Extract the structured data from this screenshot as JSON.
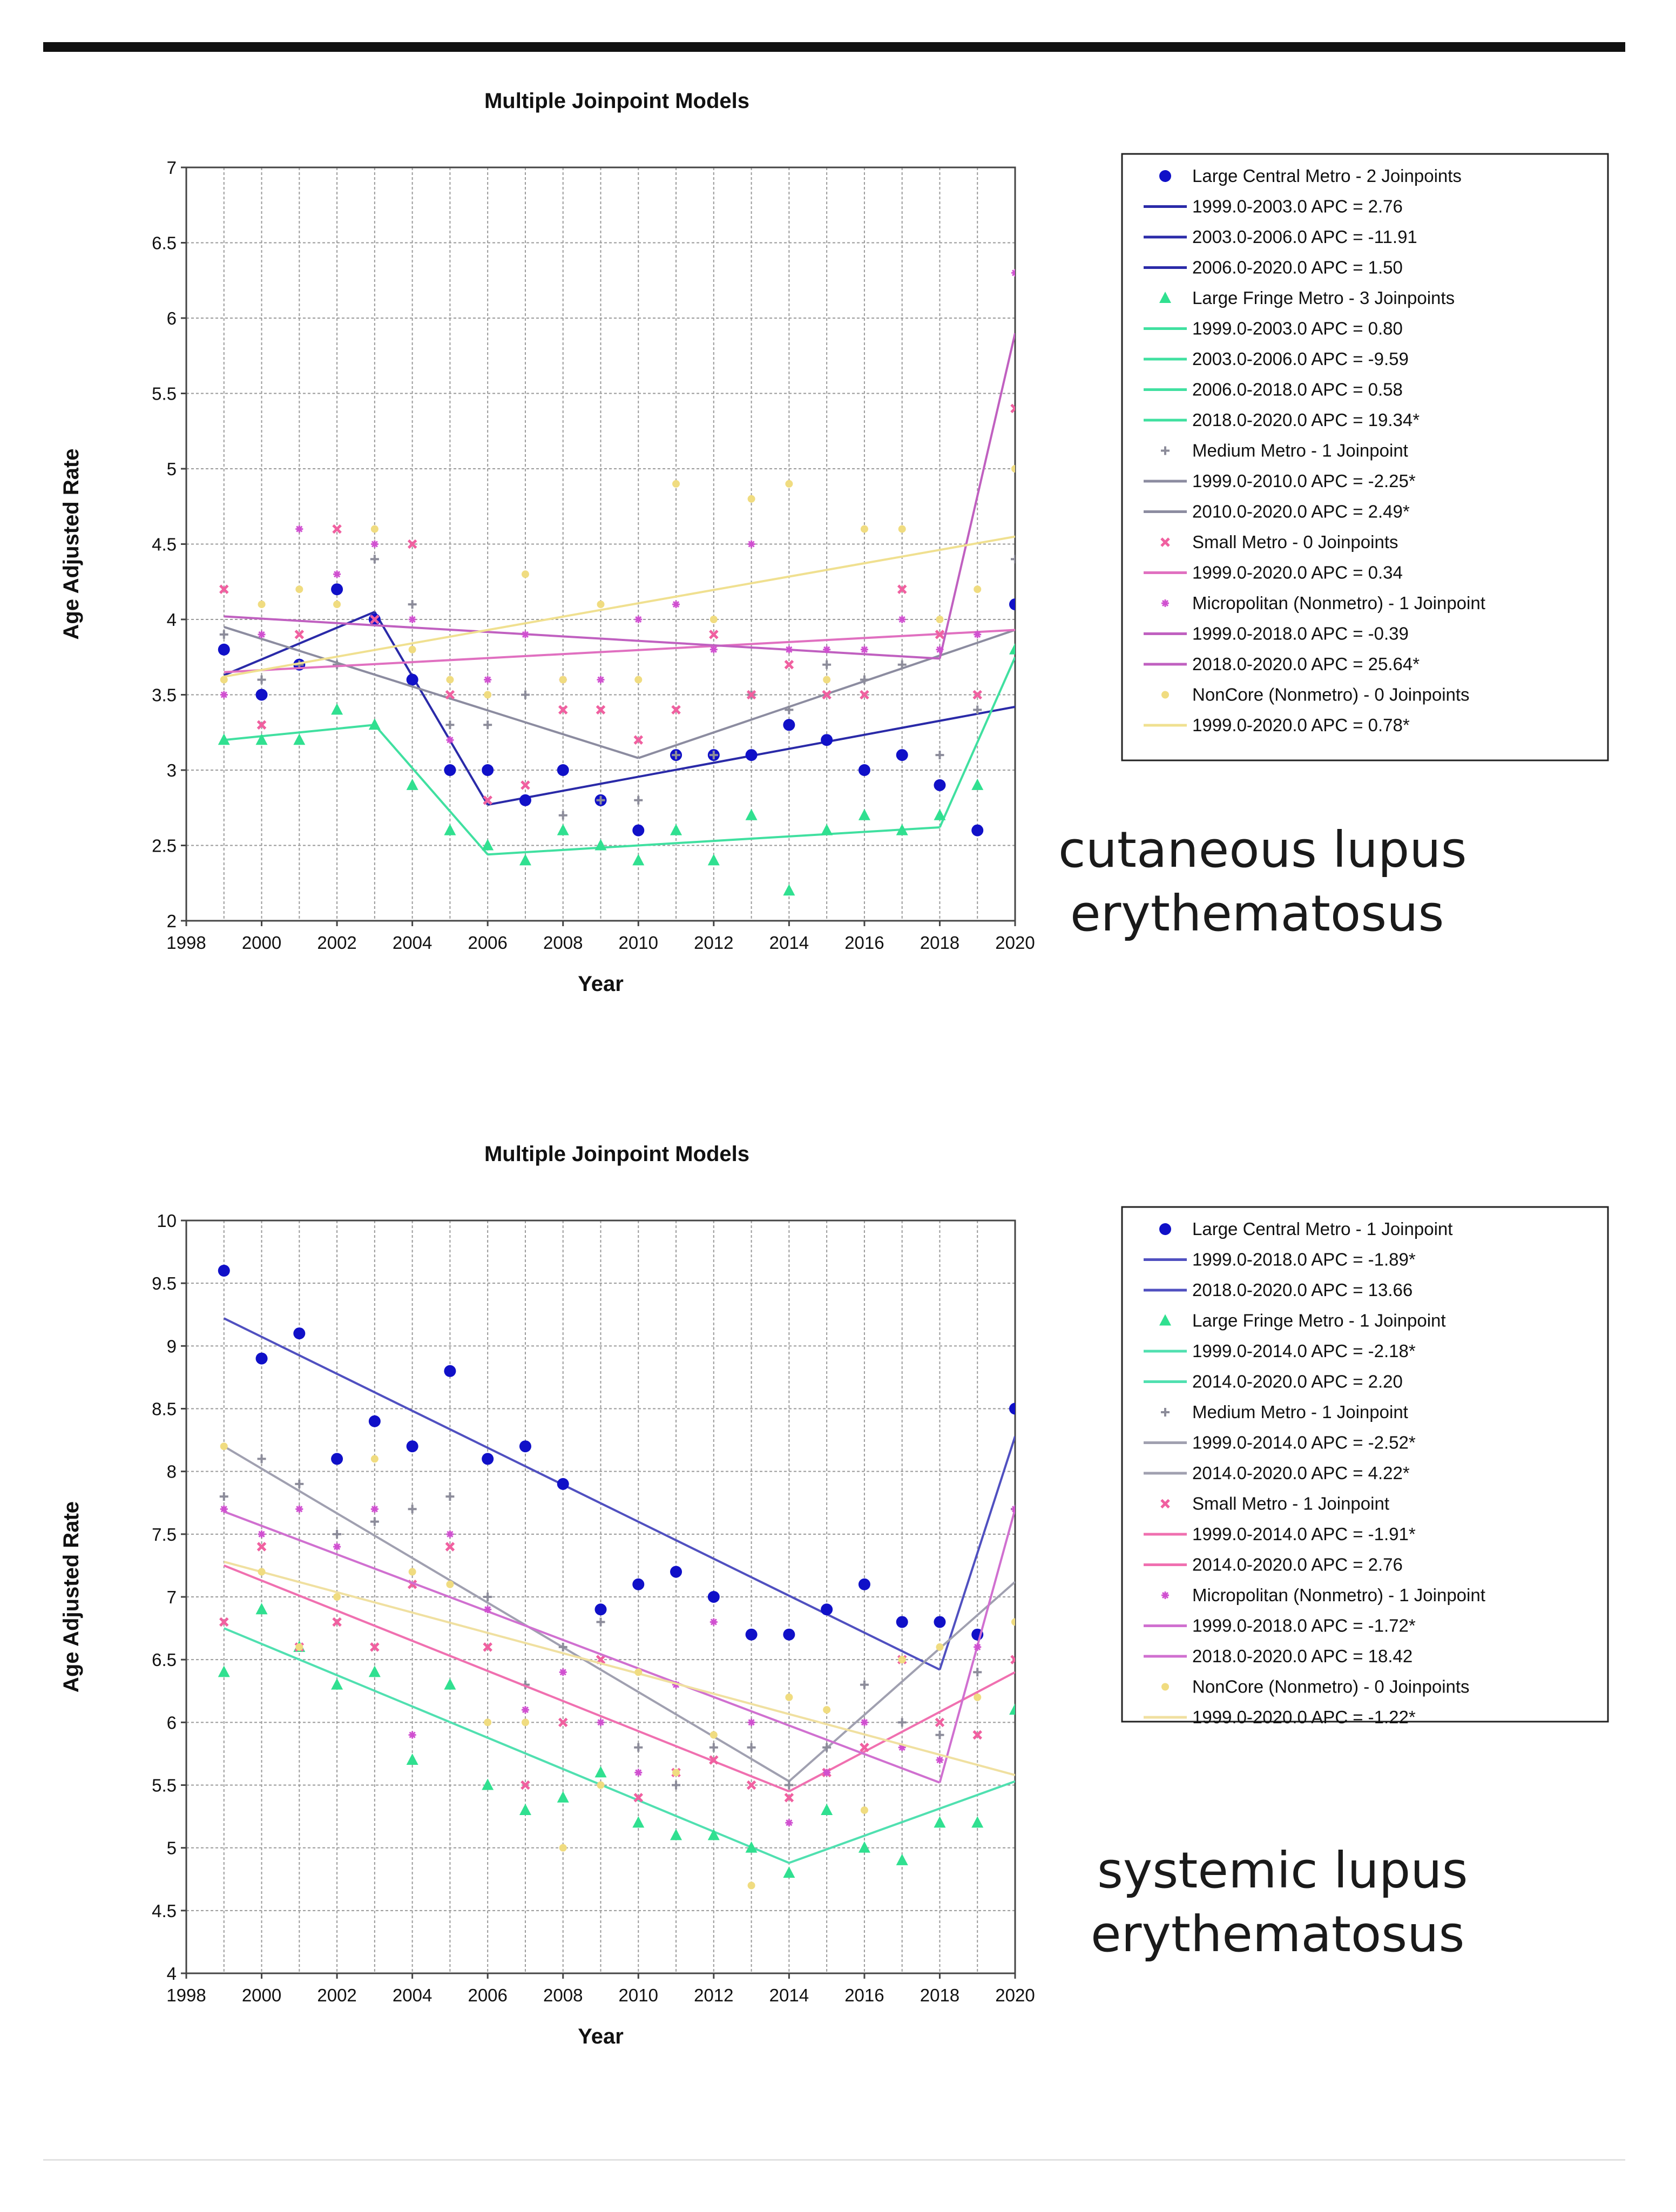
{
  "captions": [
    [
      "cutaneous lupus",
      "erythematosus"
    ],
    [
      "systemic lupus",
      "erythematosus"
    ]
  ],
  "chart_data": [
    {
      "type": "scatter",
      "title": "Multiple Joinpoint Models",
      "xlabel": "Year",
      "ylabel": "Age Adjusted Rate",
      "xlim": [
        1998,
        2020
      ],
      "ylim": [
        2,
        7
      ],
      "xticks": [
        "1998",
        "2000",
        "2002",
        "2004",
        "2006",
        "2008",
        "2010",
        "2012",
        "2014",
        "2016",
        "2018",
        "2020"
      ],
      "yticks": [
        "2",
        "2.5",
        "3",
        "3.5",
        "4",
        "4.5",
        "5",
        "5.5",
        "6",
        "6.5",
        "7"
      ],
      "grid": true,
      "legend_position": "right",
      "x": [
        1999,
        2000,
        2001,
        2002,
        2003,
        2004,
        2005,
        2006,
        2007,
        2008,
        2009,
        2010,
        2011,
        2012,
        2013,
        2014,
        2015,
        2016,
        2017,
        2018,
        2019,
        2020
      ],
      "series": [
        {
          "name": "Large Central Metro - 2 Joinpoints",
          "color": "#1010c8",
          "marker": "circle",
          "line_color": "#2a2aa8",
          "values": [
            3.8,
            3.5,
            3.7,
            4.2,
            4.0,
            3.6,
            3.0,
            3.0,
            2.8,
            3.0,
            2.8,
            2.6,
            3.1,
            3.1,
            3.1,
            3.3,
            3.2,
            3.0,
            3.1,
            2.9,
            2.6,
            4.1
          ],
          "segments": [
            {
              "label": "1999.0-2003.0 APC  =    2.76",
              "x": [
                1999,
                2003
              ],
              "y": [
                3.63,
                4.05
              ]
            },
            {
              "label": "2003.0-2006.0 APC  = -11.91",
              "x": [
                2003,
                2006
              ],
              "y": [
                4.05,
                2.77
              ]
            },
            {
              "label": "2006.0-2020.0 APC  =    1.50",
              "x": [
                2006,
                2020
              ],
              "y": [
                2.77,
                3.42
              ]
            }
          ]
        },
        {
          "name": "Large Fringe Metro - 3 Joinpoints",
          "color": "#30e090",
          "marker": "triangle",
          "line_color": "#40e0a0",
          "values": [
            3.2,
            3.2,
            3.2,
            3.4,
            3.3,
            2.9,
            2.6,
            2.5,
            2.4,
            2.6,
            2.5,
            2.4,
            2.6,
            2.4,
            2.7,
            2.2,
            2.6,
            2.7,
            2.6,
            2.7,
            2.9,
            3.8
          ],
          "segments": [
            {
              "label": "1999.0-2003.0 APC  =   0.80",
              "x": [
                1999,
                2003
              ],
              "y": [
                3.2,
                3.3
              ]
            },
            {
              "label": "2003.0-2006.0 APC  =  -9.59",
              "x": [
                2003,
                2006
              ],
              "y": [
                3.3,
                2.44
              ]
            },
            {
              "label": "2006.0-2018.0 APC  =   0.58",
              "x": [
                2006,
                2018
              ],
              "y": [
                2.44,
                2.62
              ]
            },
            {
              "label": "2018.0-2020.0 APC  = 19.34*",
              "x": [
                2018,
                2020
              ],
              "y": [
                2.62,
                3.75
              ]
            }
          ]
        },
        {
          "name": "Medium Metro - 1 Joinpoint",
          "color": "#8c8c9a",
          "marker": "plus",
          "line_color": "#8c8ca0",
          "values": [
            3.9,
            3.6,
            3.7,
            3.7,
            4.4,
            4.1,
            3.3,
            3.3,
            3.5,
            2.7,
            2.8,
            2.8,
            3.1,
            3.1,
            3.5,
            3.4,
            3.7,
            3.6,
            3.7,
            3.1,
            3.4,
            4.4
          ],
          "segments": [
            {
              "label": "1999.0-2010.0 APC  =  -2.25*",
              "x": [
                1999,
                2010
              ],
              "y": [
                3.95,
                3.08
              ]
            },
            {
              "label": "2010.0-2020.0 APC  =   2.49*",
              "x": [
                2010,
                2020
              ],
              "y": [
                3.08,
                3.93
              ]
            }
          ]
        },
        {
          "name": "Small Metro - 0 Joinpoints",
          "color": "#f060a0",
          "marker": "x",
          "line_color": "#e070c0",
          "values": [
            4.2,
            3.3,
            3.9,
            4.6,
            4.0,
            4.5,
            3.5,
            2.8,
            2.9,
            3.4,
            3.4,
            3.2,
            3.4,
            3.9,
            3.5,
            3.7,
            3.5,
            3.5,
            4.2,
            3.9,
            3.5,
            5.4
          ],
          "segments": [
            {
              "label": "1999.0-2020.0 APC  =  0.34",
              "x": [
                1999,
                2020
              ],
              "y": [
                3.65,
                3.93
              ]
            }
          ]
        },
        {
          "name": "Micropolitan (Nonmetro) - 1 Joinpoint",
          "color": "#d050d0",
          "marker": "star",
          "line_color": "#c060c0",
          "values": [
            3.5,
            3.9,
            4.6,
            4.3,
            4.5,
            4.0,
            3.2,
            3.6,
            3.9,
            3.6,
            3.6,
            4.0,
            4.1,
            3.8,
            4.5,
            3.8,
            3.8,
            3.8,
            4.0,
            3.8,
            3.9,
            6.3
          ],
          "segments": [
            {
              "label": "1999.0-2018.0 APC  =  -0.39",
              "x": [
                1999,
                2018
              ],
              "y": [
                4.02,
                3.74
              ]
            },
            {
              "label": "2018.0-2020.0 APC  = 25.64*",
              "x": [
                2018,
                2020
              ],
              "y": [
                3.74,
                5.9
              ]
            }
          ]
        },
        {
          "name": "NonCore (Nonmetro) - 0 Joinpoints",
          "color": "#f0dc80",
          "marker": "dot",
          "line_color": "#f0e090",
          "values": [
            3.6,
            4.1,
            4.2,
            4.1,
            4.6,
            3.8,
            3.6,
            3.5,
            4.3,
            3.6,
            4.1,
            3.6,
            4.9,
            4.0,
            4.8,
            4.9,
            3.6,
            4.6,
            4.6,
            4.0,
            4.2,
            5.0
          ],
          "segments": [
            {
              "label": "1999.0-2020.0 APC  =  0.78*",
              "x": [
                1999,
                2020
              ],
              "y": [
                3.62,
                4.55
              ]
            }
          ]
        }
      ]
    },
    {
      "type": "scatter",
      "title": "Multiple Joinpoint Models",
      "xlabel": "Year",
      "ylabel": "Age Adjusted Rate",
      "xlim": [
        1998,
        2020
      ],
      "ylim": [
        4,
        10
      ],
      "xticks": [
        "1998",
        "2000",
        "2002",
        "2004",
        "2006",
        "2008",
        "2010",
        "2012",
        "2014",
        "2016",
        "2018",
        "2020"
      ],
      "yticks": [
        "4",
        "4.5",
        "5",
        "5.5",
        "6",
        "6.5",
        "7",
        "7.5",
        "8",
        "8.5",
        "9",
        "9.5",
        "10"
      ],
      "grid": true,
      "legend_position": "right",
      "x": [
        1999,
        2000,
        2001,
        2002,
        2003,
        2004,
        2005,
        2006,
        2007,
        2008,
        2009,
        2010,
        2011,
        2012,
        2013,
        2014,
        2015,
        2016,
        2017,
        2018,
        2019,
        2020
      ],
      "series": [
        {
          "name": "Large Central Metro - 1 Joinpoint",
          "color": "#1010c8",
          "marker": "circle",
          "line_color": "#5050c0",
          "values": [
            9.6,
            8.9,
            9.1,
            8.1,
            8.4,
            8.2,
            8.8,
            8.1,
            8.2,
            7.9,
            6.9,
            7.1,
            7.2,
            7.0,
            6.7,
            6.7,
            6.9,
            7.1,
            6.8,
            6.8,
            6.7,
            8.5
          ],
          "segments": [
            {
              "label": "1999.0-2018.0 APC  =  -1.89*",
              "x": [
                1999,
                2018
              ],
              "y": [
                9.22,
                6.42
              ]
            },
            {
              "label": "2018.0-2020.0 APC  = 13.66",
              "x": [
                2018,
                2020
              ],
              "y": [
                6.42,
                8.28
              ]
            }
          ]
        },
        {
          "name": "Large Fringe Metro - 1 Joinpoint",
          "color": "#30e090",
          "marker": "triangle",
          "line_color": "#50e0b0",
          "values": [
            6.4,
            6.9,
            6.6,
            6.3,
            6.4,
            5.7,
            6.3,
            5.5,
            5.3,
            5.4,
            5.6,
            5.2,
            5.1,
            5.1,
            5.0,
            4.8,
            5.3,
            5.0,
            4.9,
            5.2,
            5.2,
            6.1
          ],
          "segments": [
            {
              "label": "1999.0-2014.0 APC  =  -2.18*",
              "x": [
                1999,
                2014
              ],
              "y": [
                6.75,
                4.88
              ]
            },
            {
              "label": "2014.0-2020.0 APC  =   2.20",
              "x": [
                2014,
                2020
              ],
              "y": [
                4.88,
                5.53
              ]
            }
          ]
        },
        {
          "name": "Medium Metro - 1 Joinpoint",
          "color": "#8c8c9a",
          "marker": "plus",
          "line_color": "#a0a0b0",
          "values": [
            7.8,
            8.1,
            7.9,
            7.5,
            7.6,
            7.7,
            7.8,
            7.0,
            6.3,
            6.6,
            6.8,
            5.8,
            5.5,
            5.8,
            5.8,
            5.5,
            5.8,
            6.3,
            6.0,
            5.9,
            6.4,
            7.7
          ],
          "segments": [
            {
              "label": "1999.0-2014.0 APC  =  -2.52*",
              "x": [
                1999,
                2014
              ],
              "y": [
                8.2,
                5.53
              ]
            },
            {
              "label": "2014.0-2020.0 APC  =   4.22*",
              "x": [
                2014,
                2020
              ],
              "y": [
                5.53,
                7.12
              ]
            }
          ]
        },
        {
          "name": "Small Metro - 1 Joinpoint",
          "color": "#f060a0",
          "marker": "x",
          "line_color": "#f070b0",
          "values": [
            6.8,
            7.4,
            6.6,
            6.8,
            6.6,
            7.1,
            7.4,
            6.6,
            5.5,
            6.0,
            6.5,
            5.4,
            5.6,
            5.7,
            5.5,
            5.4,
            5.6,
            5.8,
            6.5,
            6.0,
            5.9,
            6.5
          ],
          "segments": [
            {
              "label": "1999.0-2014.0 APC  =  -1.91*",
              "x": [
                1999,
                2014
              ],
              "y": [
                7.25,
                5.45
              ]
            },
            {
              "label": "2014.0-2020.0 APC  =   2.76",
              "x": [
                2014,
                2020
              ],
              "y": [
                5.45,
                6.4
              ]
            }
          ]
        },
        {
          "name": "Micropolitan (Nonmetro) - 1 Joinpoint",
          "color": "#d050d0",
          "marker": "star",
          "line_color": "#d070d0",
          "values": [
            7.7,
            7.5,
            7.7,
            7.4,
            7.7,
            5.9,
            7.5,
            6.9,
            6.1,
            6.4,
            6.0,
            5.6,
            6.3,
            6.8,
            6.0,
            5.2,
            5.6,
            6.0,
            5.8,
            5.7,
            6.6,
            7.7
          ],
          "segments": [
            {
              "label": "1999.0-2018.0 APC  =  -1.72*",
              "x": [
                1999,
                2018
              ],
              "y": [
                7.68,
                5.52
              ]
            },
            {
              "label": "2018.0-2020.0 APC  = 18.42",
              "x": [
                2018,
                2020
              ],
              "y": [
                5.52,
                7.7
              ]
            }
          ]
        },
        {
          "name": "NonCore (Nonmetro) - 0 Joinpoints",
          "color": "#f0dc80",
          "marker": "dot",
          "line_color": "#f0e0a0",
          "values": [
            8.2,
            7.2,
            6.6,
            7.0,
            8.1,
            7.2,
            7.1,
            6.0,
            6.0,
            5.0,
            5.5,
            6.4,
            5.6,
            5.9,
            4.7,
            6.2,
            6.1,
            5.3,
            6.5,
            6.6,
            6.2,
            6.8
          ],
          "segments": [
            {
              "label": "1999.0-2020.0 APC  = -1.22*",
              "x": [
                1999,
                2020
              ],
              "y": [
                7.28,
                5.58
              ]
            }
          ]
        }
      ]
    }
  ]
}
